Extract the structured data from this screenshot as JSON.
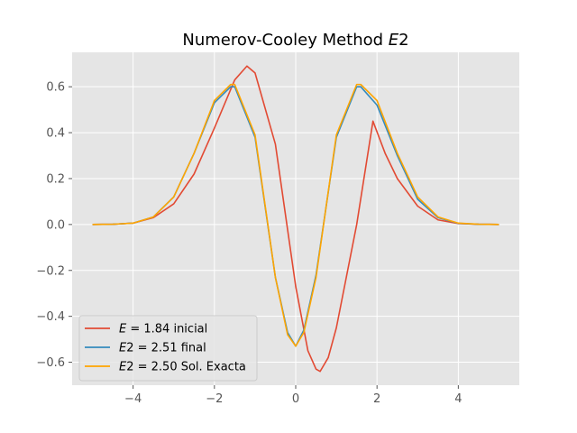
{
  "chart_data": {
    "type": "line",
    "title": "Numerov-Cooley Method E2",
    "title_parts": {
      "plain": "Numerov-Cooley Method ",
      "math": "E",
      "rest": "2"
    },
    "xlabel": "",
    "ylabel": "",
    "xlim": [
      -5.5,
      5.5
    ],
    "ylim": [
      -0.7,
      0.75
    ],
    "x_ticks": [
      -4,
      -2,
      0,
      2,
      4
    ],
    "x_tick_labels": [
      "−4",
      "−2",
      "0",
      "2",
      "4"
    ],
    "y_ticks": [
      -0.6,
      -0.4,
      -0.2,
      0.0,
      0.2,
      0.4,
      0.6
    ],
    "y_tick_labels": [
      "−0.6",
      "−0.4",
      "−0.2",
      "0.0",
      "0.2",
      "0.4",
      "0.6"
    ],
    "grid": true,
    "style": "ggplot",
    "background_color": "#E5E5E5",
    "grid_color": "#FFFFFF",
    "legend_position": "lower-left",
    "series": [
      {
        "name": "E = 1.84 inicial",
        "legend": {
          "math": "E",
          "eq": " = 1.84",
          "text": " inicial"
        },
        "color": "#E24A33",
        "x": [
          -5.0,
          -4.5,
          -4.0,
          -3.5,
          -3.0,
          -2.5,
          -2.0,
          -1.5,
          -1.2,
          -1.0,
          -0.5,
          0.0,
          0.3,
          0.5,
          0.6,
          0.8,
          1.0,
          1.5,
          1.9,
          2.2,
          2.5,
          3.0,
          3.5,
          4.0,
          4.5,
          5.0
        ],
        "y": [
          0.0,
          0.001,
          0.006,
          0.03,
          0.09,
          0.22,
          0.42,
          0.63,
          0.69,
          0.66,
          0.35,
          -0.27,
          -0.55,
          -0.63,
          -0.64,
          -0.58,
          -0.45,
          0.0,
          0.45,
          0.31,
          0.2,
          0.08,
          0.02,
          0.004,
          0.001,
          0.0
        ]
      },
      {
        "name": "E2 = 2.51 final",
        "legend": {
          "math": "E",
          "eq": "2 = 2.51",
          "text": " final"
        },
        "color": "#348ABD",
        "x": [
          -5.0,
          -4.5,
          -4.0,
          -3.5,
          -3.0,
          -2.5,
          -2.0,
          -1.6,
          -1.5,
          -1.0,
          -0.5,
          -0.2,
          0.0,
          0.2,
          0.5,
          1.0,
          1.5,
          1.6,
          2.0,
          2.5,
          3.0,
          3.5,
          4.0,
          4.5,
          5.0
        ],
        "y": [
          0.0,
          0.001,
          0.006,
          0.033,
          0.12,
          0.31,
          0.53,
          0.6,
          0.6,
          0.38,
          -0.23,
          -0.47,
          -0.53,
          -0.46,
          -0.22,
          0.38,
          0.6,
          0.6,
          0.52,
          0.3,
          0.11,
          0.03,
          0.005,
          0.001,
          0.0
        ]
      },
      {
        "name": "E2 = 2.50 Sol. Exacta",
        "legend": {
          "math": "E",
          "eq": "2 = 2.50",
          "text": " Sol. Exacta"
        },
        "color": "#FFA500",
        "x": [
          -5.0,
          -4.5,
          -4.0,
          -3.5,
          -3.0,
          -2.5,
          -2.0,
          -1.6,
          -1.5,
          -1.0,
          -0.5,
          -0.2,
          0.0,
          0.2,
          0.5,
          1.0,
          1.5,
          1.6,
          2.0,
          2.5,
          3.0,
          3.5,
          4.0,
          4.5,
          5.0
        ],
        "y": [
          0.0,
          0.001,
          0.006,
          0.033,
          0.12,
          0.31,
          0.54,
          0.61,
          0.61,
          0.39,
          -0.23,
          -0.48,
          -0.53,
          -0.47,
          -0.23,
          0.39,
          0.61,
          0.61,
          0.54,
          0.31,
          0.12,
          0.033,
          0.006,
          0.001,
          0.0
        ]
      }
    ]
  }
}
